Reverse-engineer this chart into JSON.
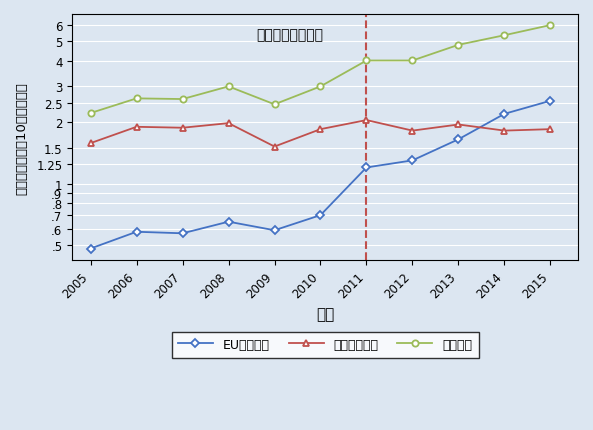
{
  "years": [
    2005,
    2006,
    2007,
    2008,
    2009,
    2010,
    2011,
    2012,
    2013,
    2014,
    2015
  ],
  "eu": [
    0.48,
    0.58,
    0.57,
    0.65,
    0.59,
    0.7,
    1.2,
    1.3,
    1.65,
    2.2,
    2.55
  ],
  "us": [
    1.58,
    1.9,
    1.88,
    1.98,
    1.52,
    1.85,
    2.05,
    1.82,
    1.95,
    1.82,
    1.85
  ],
  "total": [
    2.22,
    2.62,
    2.6,
    3.0,
    2.45,
    3.0,
    4.02,
    4.02,
    4.8,
    5.35,
    6.0
  ],
  "eu_color": "#4472c4",
  "us_color": "#c0504d",
  "total_color": "#9bbb59",
  "vline_x": 2011,
  "vline_color": "#c0504d",
  "annotation": "新しい原産地規則",
  "xlabel": "年次",
  "ylabel": "輸出顕（単位：10億米ドル）",
  "legend_eu": "EU向け輸出",
  "legend_us": "米国向け輸出",
  "legend_total": "輸出総額",
  "bg_color": "#dce6f1",
  "yticks": [
    0.5,
    0.6,
    0.7,
    0.8,
    0.9,
    1.0,
    1.25,
    1.5,
    2.0,
    2.5,
    3.0,
    4.0,
    5.0,
    6.0
  ],
  "ytick_labels": [
    ".5",
    ".6",
    ".7",
    ".8",
    ".9",
    "1",
    "1.25",
    "1.5",
    "2",
    "2.5",
    "3",
    "4",
    "5",
    "6"
  ],
  "ymin": 0.42,
  "ymax": 6.8
}
